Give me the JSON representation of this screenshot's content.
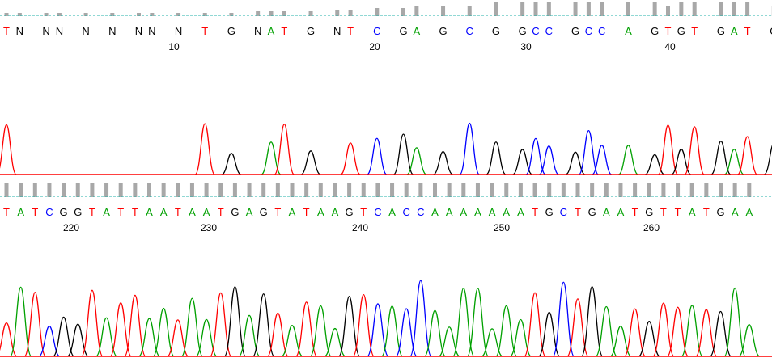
{
  "viewer": {
    "colors": {
      "A": "#00a000",
      "C": "#0000ff",
      "G": "#000000",
      "T": "#ff0000",
      "N": "#000000",
      "quality_bar": "#a8a8a8",
      "threshold_line": "#20b2aa"
    },
    "tracks": [
      {
        "sequence": "TN NN N N NN N T G NAT G NT C GA G C G GCC GCC A GTGT GAT GG ATA T C T GC",
        "position_labels": [
          "10",
          "20",
          "30",
          "40"
        ],
        "position_values": [
          10,
          20,
          30,
          40
        ],
        "quality": [
          0.2,
          0.2,
          0.2,
          0.2,
          0.2,
          0.2,
          0.2,
          0.2,
          0.2,
          0.2,
          0.2,
          0.3,
          0.3,
          0.3,
          0.3,
          0.4,
          0.4,
          0.5,
          0.5,
          0.6,
          0.6,
          0.6,
          0.9,
          0.9,
          0.9,
          0.9,
          0.9,
          0.9,
          0.9,
          0.9,
          0.9,
          0.6,
          0.9,
          0.9,
          0.9,
          0.9,
          0.9,
          0.6,
          0.6,
          0.6,
          0.9,
          0.6,
          0.6,
          0.9,
          0.9,
          0.9,
          0.9,
          0.9,
          0.9,
          0.9
        ]
      },
      {
        "sequence": "TATCGGTATTAATAATGAGTATAAGTCACCAAAAAAATGCTGAATGTTATGAA",
        "position_labels": [
          "220",
          "230",
          "240",
          "250",
          "260"
        ],
        "position_values": [
          220,
          230,
          240,
          250,
          260
        ],
        "quality": [
          0.9,
          0.9,
          0.9,
          0.9,
          0.9,
          0.9,
          0.9,
          0.9,
          0.9,
          0.9,
          0.9,
          0.9,
          0.9,
          0.9,
          0.9,
          0.9,
          0.9,
          0.9,
          0.9,
          0.9,
          0.9,
          0.9,
          0.9,
          0.9,
          0.9,
          0.9,
          0.9,
          0.9,
          0.9,
          0.9,
          0.9,
          0.9,
          0.9,
          0.9,
          0.9,
          0.9,
          0.9,
          0.9,
          0.9,
          0.9,
          0.9,
          0.9,
          0.9,
          0.9,
          0.9,
          0.9,
          0.9,
          0.9,
          0.9,
          0.9,
          0.9,
          0.9,
          0.9
        ]
      }
    ]
  }
}
